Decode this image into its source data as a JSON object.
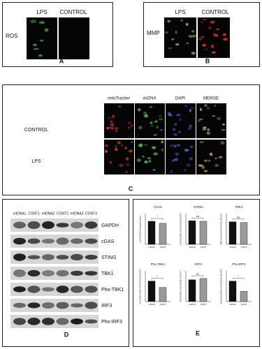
{
  "figure": {
    "A": {
      "label": "A",
      "row_label": "ROS",
      "columns": [
        "LPS",
        "CONTROL"
      ]
    },
    "B": {
      "label": "B",
      "row_label": "MMP",
      "columns": [
        "LPS",
        "CONTROL"
      ]
    },
    "C": {
      "label": "C",
      "columns": [
        "mitoTracker",
        "dsDNA",
        "DAPI",
        "MERGE"
      ],
      "rows": [
        "CONTROL",
        "LPS"
      ]
    },
    "D": {
      "label": "D",
      "lanes": [
        "mtDNA1",
        "CONT1",
        "mtDNA2",
        "CONT2",
        "mtDNA3",
        "CONT3"
      ],
      "proteins": [
        "GAPDH",
        "cGAS",
        "STING",
        "TBK1",
        "Pho-TBK1",
        "IRF3",
        "Pho-IRF3"
      ]
    },
    "E": {
      "label": "E"
    }
  },
  "chart_data": [
    {
      "type": "bar",
      "title": "cGAS",
      "ylabel": "cGAS/GAPDH Integrated Density",
      "categories": [
        "mtDNA",
        "CONT"
      ],
      "values": [
        0.9,
        0.82
      ],
      "colors": [
        "#111111",
        "#9a9a9a"
      ],
      "ylim": [
        0,
        1.2
      ],
      "significance": "*"
    },
    {
      "type": "bar",
      "title": "STING",
      "ylabel": "STING/GAPDH INTEGRATED DENSITY",
      "categories": [
        "mtDNA",
        "CONT"
      ],
      "values": [
        0.92,
        0.9
      ],
      "colors": [
        "#111111",
        "#9a9a9a"
      ],
      "ylim": [
        0,
        1.2
      ],
      "significance": "ns"
    },
    {
      "type": "bar",
      "title": "TBK1",
      "ylabel": "TBK1/GAPDH INTEGRATED DENSITY",
      "categories": [
        "mtDNA",
        "CONT"
      ],
      "values": [
        0.88,
        0.85
      ],
      "colors": [
        "#111111",
        "#9a9a9a"
      ],
      "ylim": [
        0,
        1.2
      ],
      "significance": "ns"
    },
    {
      "type": "bar",
      "title": "Pho-TBK1",
      "ylabel": "Pho-TBK1/GAPDH INTEGRATED DENSITY",
      "categories": [
        "mtDNA",
        "CONT"
      ],
      "values": [
        0.8,
        0.55
      ],
      "colors": [
        "#111111",
        "#9a9a9a"
      ],
      "ylim": [
        0,
        1.2
      ],
      "significance": "*"
    },
    {
      "type": "bar",
      "title": "IRF3",
      "ylabel": "IRF3/GAPDH INTEGRATED DENSITY",
      "categories": [
        "mtDNA",
        "CONT"
      ],
      "values": [
        0.85,
        0.9
      ],
      "colors": [
        "#111111",
        "#9a9a9a"
      ],
      "ylim": [
        0,
        1.2
      ],
      "significance": "ns"
    },
    {
      "type": "bar",
      "title": "Pho-IRF3",
      "ylabel": "Pho-IRF3/GAPDH INTEGRATED DENSITY",
      "categories": [
        "mtDNA",
        "CONT"
      ],
      "values": [
        0.8,
        0.4
      ],
      "colors": [
        "#111111",
        "#9a9a9a"
      ],
      "ylim": [
        0,
        1.2
      ],
      "significance": "*"
    }
  ]
}
